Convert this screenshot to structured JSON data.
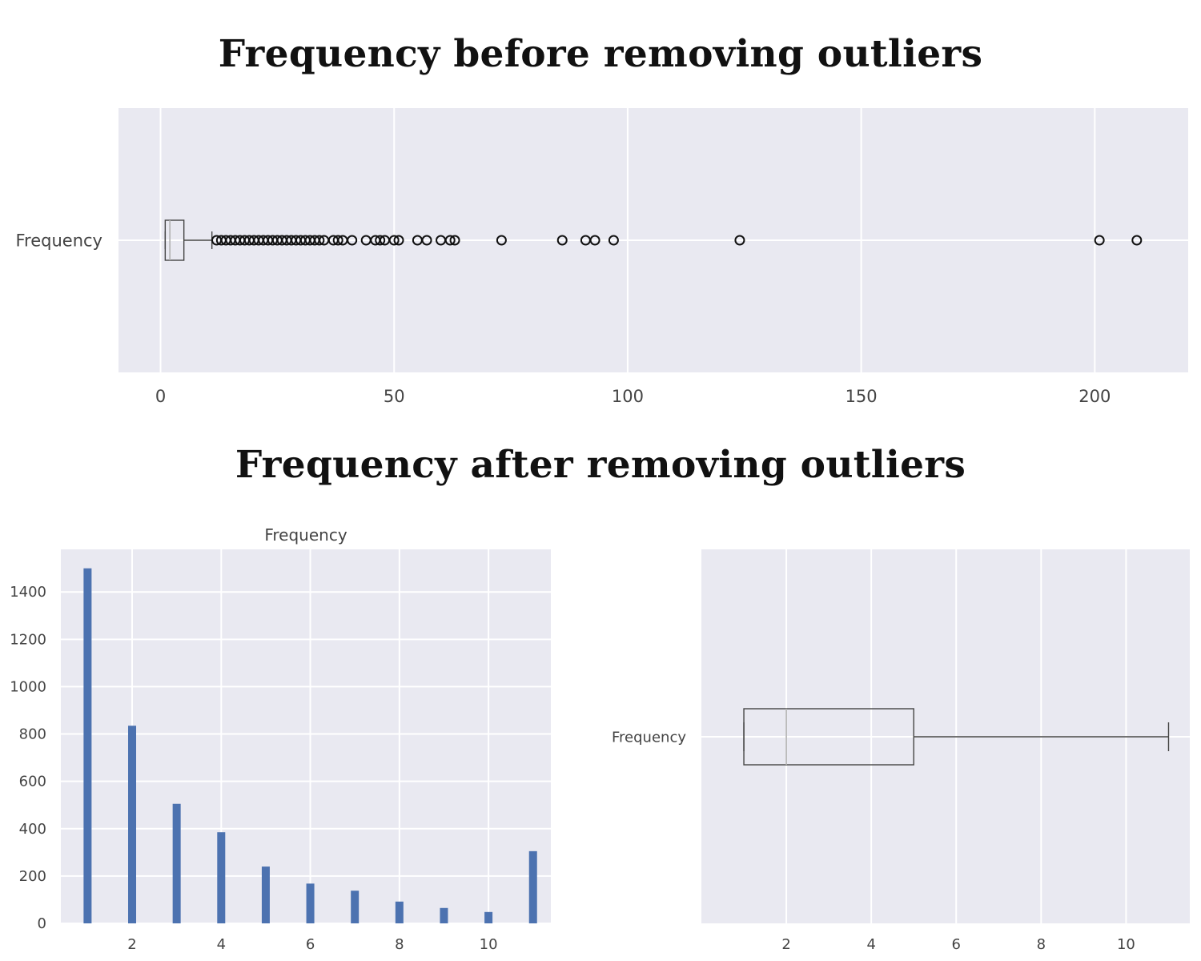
{
  "headings": {
    "top": "Frequency before removing outliers",
    "bottom": "Frequency after removing outliers"
  },
  "colors": {
    "plot_background": "#e9e9f1",
    "grid": "#ffffff",
    "bar": "#4c72b0",
    "box_edge": "#444444",
    "median": "#b0b0b0"
  },
  "chart_data": [
    {
      "type": "box",
      "orientation": "horizontal",
      "category": "Frequency",
      "xlim": [
        -9,
        220
      ],
      "xticks": [
        0,
        50,
        100,
        150,
        200
      ],
      "grid": true,
      "whisker_low": 1,
      "q1": 1,
      "median": 2,
      "q3": 5,
      "whisker_high": 11,
      "outliers": [
        12,
        13,
        14,
        15,
        16,
        17,
        18,
        19,
        20,
        21,
        22,
        23,
        24,
        25,
        26,
        27,
        28,
        29,
        30,
        31,
        32,
        33,
        34,
        35,
        37,
        38,
        39,
        41,
        44,
        46,
        47,
        48,
        50,
        51,
        55,
        57,
        60,
        62,
        63,
        73,
        86,
        91,
        93,
        97,
        124,
        201,
        209
      ]
    },
    {
      "type": "bar",
      "title": "Frequency",
      "categories": [
        1,
        2,
        3,
        4,
        5,
        6,
        7,
        8,
        9,
        10,
        11
      ],
      "values": [
        1500,
        835,
        505,
        385,
        240,
        168,
        138,
        92,
        65,
        48,
        305
      ],
      "xlim": [
        0.4,
        11.4
      ],
      "ylim": [
        0,
        1580
      ],
      "xticks": [
        2,
        4,
        6,
        8,
        10
      ],
      "yticks": [
        0,
        200,
        400,
        600,
        800,
        1000,
        1200,
        1400
      ],
      "grid": true
    },
    {
      "type": "box",
      "orientation": "horizontal",
      "category": "Frequency",
      "xlim": [
        0.0,
        11.5
      ],
      "xticks": [
        2,
        4,
        6,
        8,
        10
      ],
      "grid": true,
      "whisker_low": 1,
      "q1": 1,
      "median": 2,
      "q3": 5,
      "whisker_high": 11
    }
  ]
}
